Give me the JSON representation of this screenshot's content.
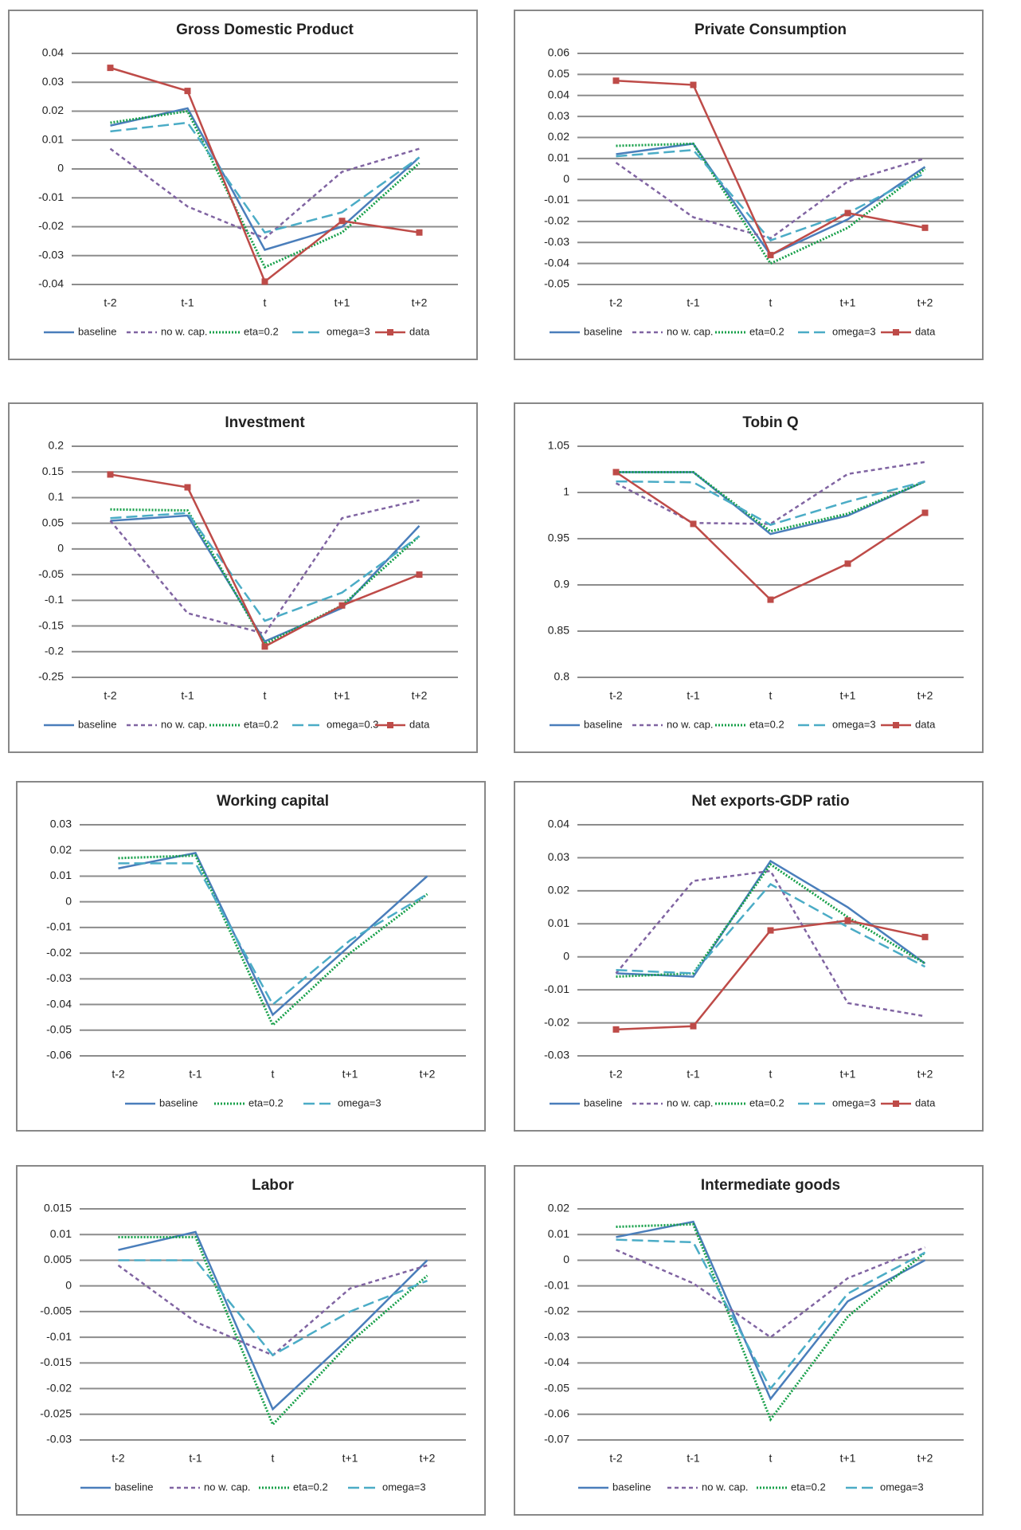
{
  "chart_data": [
    {
      "type": "line",
      "title": "Gross Domestic Product",
      "categories": [
        "t-2",
        "t-1",
        "t",
        "t+1",
        "t+2"
      ],
      "ylim": [
        -0.04,
        0.04
      ],
      "yticks": [
        -0.04,
        -0.03,
        -0.02,
        -0.01,
        0,
        0.01,
        0.02,
        0.03,
        0.04
      ],
      "grid": true,
      "series": [
        {
          "name": "baseline",
          "color": "#4a7ebb",
          "style": "solid",
          "values": [
            0.015,
            0.021,
            -0.028,
            -0.02,
            0.004
          ]
        },
        {
          "name": "no w. cap.",
          "color": "#8064a2",
          "style": "dashed",
          "values": [
            0.007,
            -0.013,
            -0.024,
            -0.001,
            0.007
          ]
        },
        {
          "name": "eta=0.2",
          "color": "#17a04a",
          "style": "dotted",
          "values": [
            0.016,
            0.02,
            -0.034,
            -0.022,
            0.002
          ]
        },
        {
          "name": "omega=3",
          "color": "#4bacc6",
          "style": "longdash",
          "values": [
            0.013,
            0.016,
            -0.022,
            -0.015,
            0.004
          ]
        },
        {
          "name": "data",
          "color": "#be4b48",
          "style": "square",
          "values": [
            0.035,
            0.027,
            -0.039,
            -0.018,
            -0.022
          ]
        }
      ]
    },
    {
      "type": "line",
      "title": "Private Consumption",
      "categories": [
        "t-2",
        "t-1",
        "t",
        "t+1",
        "t+2"
      ],
      "ylim": [
        -0.05,
        0.06
      ],
      "yticks": [
        -0.05,
        -0.04,
        -0.03,
        -0.02,
        -0.01,
        0,
        0.01,
        0.02,
        0.03,
        0.04,
        0.05,
        0.06
      ],
      "grid": true,
      "series": [
        {
          "name": "baseline",
          "color": "#4a7ebb",
          "style": "solid",
          "values": [
            0.012,
            0.017,
            -0.036,
            -0.019,
            0.006
          ]
        },
        {
          "name": "no w. cap.",
          "color": "#8064a2",
          "style": "dashed",
          "values": [
            0.008,
            -0.018,
            -0.028,
            -0.001,
            0.01
          ]
        },
        {
          "name": "eta=0.2",
          "color": "#17a04a",
          "style": "dotted",
          "values": [
            0.016,
            0.017,
            -0.04,
            -0.023,
            0.005
          ]
        },
        {
          "name": "omega=3",
          "color": "#4bacc6",
          "style": "longdash",
          "values": [
            0.011,
            0.014,
            -0.029,
            -0.016,
            0.003
          ]
        },
        {
          "name": "data",
          "color": "#be4b48",
          "style": "square",
          "values": [
            0.047,
            0.045,
            -0.036,
            -0.016,
            -0.023
          ]
        }
      ]
    },
    {
      "type": "line",
      "title": "Investment",
      "categories": [
        "t-2",
        "t-1",
        "t",
        "t+1",
        "t+2"
      ],
      "ylim": [
        -0.25,
        0.2
      ],
      "yticks": [
        -0.25,
        -0.2,
        -0.15,
        -0.1,
        -0.05,
        0,
        0.05,
        0.1,
        0.15,
        0.2
      ],
      "grid": true,
      "series": [
        {
          "name": "baseline",
          "color": "#4a7ebb",
          "style": "solid",
          "values": [
            0.055,
            0.065,
            -0.18,
            -0.115,
            0.045
          ]
        },
        {
          "name": "no w. cap.",
          "color": "#8064a2",
          "style": "dashed",
          "values": [
            0.055,
            -0.125,
            -0.165,
            0.06,
            0.095
          ]
        },
        {
          "name": "eta=0.2",
          "color": "#17a04a",
          "style": "dotted",
          "values": [
            0.077,
            0.075,
            -0.185,
            -0.11,
            0.025
          ]
        },
        {
          "name": "omega=0.3",
          "color": "#4bacc6",
          "style": "longdash",
          "values": [
            0.06,
            0.07,
            -0.14,
            -0.085,
            0.025
          ]
        },
        {
          "name": "data",
          "color": "#be4b48",
          "style": "square",
          "values": [
            0.145,
            0.12,
            -0.19,
            -0.11,
            -0.05
          ]
        }
      ]
    },
    {
      "type": "line",
      "title": "Tobin Q",
      "categories": [
        "t-2",
        "t-1",
        "t",
        "t+1",
        "t+2"
      ],
      "ylim": [
        0.8,
        1.05
      ],
      "yticks": [
        0.8,
        0.85,
        0.9,
        0.95,
        1,
        1.05
      ],
      "grid": true,
      "series": [
        {
          "name": "baseline",
          "color": "#4a7ebb",
          "style": "solid",
          "values": [
            1.022,
            1.022,
            0.955,
            0.975,
            1.012
          ]
        },
        {
          "name": "no w. cap.",
          "color": "#8064a2",
          "style": "dashed",
          "values": [
            1.01,
            0.967,
            0.966,
            1.02,
            1.033
          ]
        },
        {
          "name": "eta=0.2",
          "color": "#17a04a",
          "style": "dotted",
          "values": [
            1.022,
            1.022,
            0.958,
            0.977,
            1.012
          ]
        },
        {
          "name": "omega=3",
          "color": "#4bacc6",
          "style": "longdash",
          "values": [
            1.012,
            1.011,
            0.965,
            0.99,
            1.012
          ]
        },
        {
          "name": "data",
          "color": "#be4b48",
          "style": "square",
          "values": [
            1.022,
            0.966,
            0.884,
            0.923,
            0.978
          ]
        }
      ]
    },
    {
      "type": "line",
      "title": "Working capital",
      "categories": [
        "t-2",
        "t-1",
        "t",
        "t+1",
        "t+2"
      ],
      "ylim": [
        -0.06,
        0.03
      ],
      "yticks": [
        -0.06,
        -0.05,
        -0.04,
        -0.03,
        -0.02,
        -0.01,
        0,
        0.01,
        0.02,
        0.03
      ],
      "grid": true,
      "series": [
        {
          "name": "baseline",
          "color": "#4a7ebb",
          "style": "solid",
          "values": [
            0.013,
            0.019,
            -0.044,
            -0.017,
            0.01
          ]
        },
        {
          "name": "eta=0.2",
          "color": "#17a04a",
          "style": "dotted",
          "values": [
            0.017,
            0.018,
            -0.048,
            -0.02,
            0.003
          ]
        },
        {
          "name": "omega=3",
          "color": "#4bacc6",
          "style": "longdash",
          "values": [
            0.015,
            0.015,
            -0.04,
            -0.015,
            0.003
          ]
        }
      ]
    },
    {
      "type": "line",
      "title": "Net exports-GDP ratio",
      "categories": [
        "t-2",
        "t-1",
        "t",
        "t+1",
        "t+2"
      ],
      "ylim": [
        -0.03,
        0.04
      ],
      "yticks": [
        -0.03,
        -0.02,
        -0.01,
        0,
        0.01,
        0.02,
        0.03,
        0.04
      ],
      "grid": true,
      "series": [
        {
          "name": "baseline",
          "color": "#4a7ebb",
          "style": "solid",
          "values": [
            -0.005,
            -0.006,
            0.029,
            0.015,
            -0.002
          ]
        },
        {
          "name": "no w. cap.",
          "color": "#8064a2",
          "style": "dashed",
          "values": [
            -0.005,
            0.023,
            0.026,
            -0.014,
            -0.018
          ]
        },
        {
          "name": "eta=0.2",
          "color": "#17a04a",
          "style": "dotted",
          "values": [
            -0.006,
            -0.005,
            0.028,
            0.012,
            -0.002
          ]
        },
        {
          "name": "omega=3",
          "color": "#4bacc6",
          "style": "longdash",
          "values": [
            -0.004,
            -0.005,
            0.022,
            0.009,
            -0.003
          ]
        },
        {
          "name": "data",
          "color": "#be4b48",
          "style": "square",
          "values": [
            -0.022,
            -0.021,
            0.008,
            0.011,
            0.006
          ]
        }
      ]
    },
    {
      "type": "line",
      "title": "Labor",
      "categories": [
        "t-2",
        "t-1",
        "t",
        "t+1",
        "t+2"
      ],
      "ylim": [
        -0.03,
        0.015
      ],
      "yticks": [
        -0.03,
        -0.025,
        -0.02,
        -0.015,
        -0.01,
        -0.005,
        0,
        0.005,
        0.01,
        0.015
      ],
      "grid": true,
      "series": [
        {
          "name": "baseline",
          "color": "#4a7ebb",
          "style": "solid",
          "values": [
            0.007,
            0.0105,
            -0.024,
            -0.01,
            0.005
          ]
        },
        {
          "name": "no w. cap.",
          "color": "#8064a2",
          "style": "dashed",
          "values": [
            0.004,
            -0.007,
            -0.0135,
            -0.0005,
            0.004
          ]
        },
        {
          "name": "eta=0.2",
          "color": "#17a04a",
          "style": "dotted",
          "values": [
            0.0095,
            0.0095,
            -0.027,
            -0.011,
            0.002
          ]
        },
        {
          "name": "omega=3",
          "color": "#4bacc6",
          "style": "longdash",
          "values": [
            0.005,
            0.005,
            -0.0135,
            -0.005,
            0.001
          ]
        }
      ]
    },
    {
      "type": "line",
      "title": "Intermediate goods",
      "categories": [
        "t-2",
        "t-1",
        "t",
        "t+1",
        "t+2"
      ],
      "ylim": [
        -0.07,
        0.02
      ],
      "yticks": [
        -0.07,
        -0.06,
        -0.05,
        -0.04,
        -0.03,
        -0.02,
        -0.01,
        0,
        0.01,
        0.02
      ],
      "grid": true,
      "series": [
        {
          "name": "baseline",
          "color": "#4a7ebb",
          "style": "solid",
          "values": [
            0.009,
            0.015,
            -0.054,
            -0.016,
            0
          ]
        },
        {
          "name": "no w. cap.",
          "color": "#8064a2",
          "style": "dashed",
          "values": [
            0.004,
            -0.009,
            -0.03,
            -0.007,
            0.005
          ]
        },
        {
          "name": "eta=0.2",
          "color": "#17a04a",
          "style": "dotted",
          "values": [
            0.013,
            0.014,
            -0.062,
            -0.022,
            0.003
          ]
        },
        {
          "name": "omega=3",
          "color": "#4bacc6",
          "style": "longdash",
          "values": [
            0.008,
            0.007,
            -0.05,
            -0.013,
            0.003
          ]
        }
      ]
    }
  ]
}
